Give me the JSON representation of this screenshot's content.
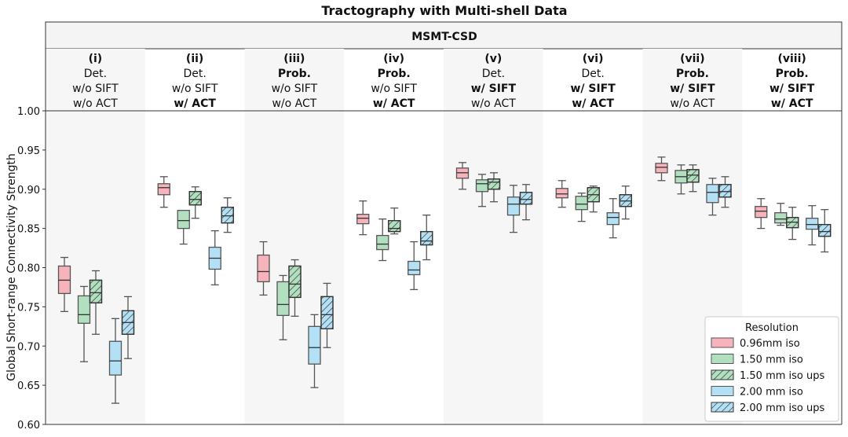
{
  "chart_data": {
    "type": "box",
    "title": "Tractography with Multi-shell Data",
    "subtitle": "MSMT-CSD",
    "ylabel": "Global Short-range Connectivity Strength",
    "ylim": [
      0.6,
      1.0
    ],
    "yticks": [
      "0.60",
      "0.65",
      "0.70",
      "0.75",
      "0.80",
      "0.85",
      "0.90",
      "0.95",
      "1.00"
    ],
    "groups": [
      {
        "lines": [
          {
            "t": "(i)",
            "b": true
          },
          {
            "t": "Det.",
            "b": false
          },
          {
            "t": "w/o SIFT",
            "b": false
          },
          {
            "t": "w/o ACT",
            "b": false
          }
        ]
      },
      {
        "lines": [
          {
            "t": "(ii)",
            "b": true
          },
          {
            "t": "Det.",
            "b": false
          },
          {
            "t": "w/o SIFT",
            "b": false
          },
          {
            "t": "w/ ACT",
            "b": true
          }
        ]
      },
      {
        "lines": [
          {
            "t": "(iii)",
            "b": true
          },
          {
            "t": "Prob.",
            "b": true
          },
          {
            "t": "w/o SIFT",
            "b": false
          },
          {
            "t": "w/o ACT",
            "b": false
          }
        ]
      },
      {
        "lines": [
          {
            "t": "(iv)",
            "b": true
          },
          {
            "t": "Prob.",
            "b": true
          },
          {
            "t": "w/o SIFT",
            "b": false
          },
          {
            "t": "w/ ACT",
            "b": true
          }
        ]
      },
      {
        "lines": [
          {
            "t": "(v)",
            "b": true
          },
          {
            "t": "Det.",
            "b": false
          },
          {
            "t": "w/ SIFT",
            "b": true
          },
          {
            "t": "w/o ACT",
            "b": false
          }
        ]
      },
      {
        "lines": [
          {
            "t": "(vi)",
            "b": true
          },
          {
            "t": "Det.",
            "b": false
          },
          {
            "t": "w/ SIFT",
            "b": true
          },
          {
            "t": "w/ ACT",
            "b": true
          }
        ]
      },
      {
        "lines": [
          {
            "t": "(vii)",
            "b": true
          },
          {
            "t": "Prob.",
            "b": true
          },
          {
            "t": "w/ SIFT",
            "b": true
          },
          {
            "t": "w/o ACT",
            "b": false
          }
        ]
      },
      {
        "lines": [
          {
            "t": "(viii)",
            "b": true
          },
          {
            "t": "Prob.",
            "b": true
          },
          {
            "t": "w/ SIFT",
            "b": true
          },
          {
            "t": "w/ ACT",
            "b": true
          }
        ]
      }
    ],
    "legend": {
      "title": "Resolution",
      "position": "bottom-right"
    },
    "series": [
      {
        "name": "0.96mm iso",
        "color": "#f6b3bb",
        "hatch": false,
        "boxes": [
          [
            0.744,
            0.767,
            0.784,
            0.802,
            0.813
          ],
          [
            0.877,
            0.893,
            0.902,
            0.907,
            0.916
          ],
          [
            0.765,
            0.782,
            0.795,
            0.816,
            0.833
          ],
          [
            0.842,
            0.856,
            0.863,
            0.868,
            0.885
          ],
          [
            0.9,
            0.914,
            0.921,
            0.927,
            0.934
          ],
          [
            0.877,
            0.889,
            0.894,
            0.901,
            0.911
          ],
          [
            0.911,
            0.921,
            0.928,
            0.933,
            0.941
          ],
          [
            0.85,
            0.864,
            0.872,
            0.878,
            0.888
          ]
        ]
      },
      {
        "name": "1.50 mm iso",
        "color": "#b2dfc0",
        "hatch": false,
        "boxes": [
          [
            0.68,
            0.729,
            0.74,
            0.764,
            0.776
          ],
          [
            0.83,
            0.85,
            0.86,
            0.873,
            0.87
          ],
          [
            0.708,
            0.739,
            0.753,
            0.782,
            0.79
          ],
          [
            0.809,
            0.823,
            0.83,
            0.841,
            0.862
          ],
          [
            0.878,
            0.897,
            0.907,
            0.912,
            0.919
          ],
          [
            0.859,
            0.874,
            0.881,
            0.891,
            0.895
          ],
          [
            0.894,
            0.908,
            0.916,
            0.924,
            0.931
          ],
          [
            0.854,
            0.857,
            0.862,
            0.87,
            0.882
          ]
        ]
      },
      {
        "name": "1.50 mm iso ups",
        "color": "#b2dfc0",
        "hatch": true,
        "boxes": [
          [
            0.715,
            0.755,
            0.768,
            0.784,
            0.796
          ],
          [
            0.863,
            0.88,
            0.887,
            0.897,
            0.903
          ],
          [
            0.738,
            0.762,
            0.779,
            0.802,
            0.81
          ],
          [
            0.843,
            0.846,
            0.85,
            0.86,
            0.876
          ],
          [
            0.884,
            0.9,
            0.909,
            0.913,
            0.921
          ],
          [
            0.871,
            0.884,
            0.893,
            0.902,
            0.904
          ],
          [
            0.897,
            0.909,
            0.918,
            0.925,
            0.931
          ],
          [
            0.836,
            0.851,
            0.858,
            0.864,
            0.877
          ]
        ]
      },
      {
        "name": "2.00 mm iso",
        "color": "#b3e0f5",
        "hatch": false,
        "boxes": [
          [
            0.627,
            0.663,
            0.681,
            0.706,
            0.735
          ],
          [
            0.778,
            0.798,
            0.812,
            0.826,
            0.847
          ],
          [
            0.647,
            0.677,
            0.698,
            0.725,
            0.74
          ],
          [
            0.772,
            0.791,
            0.797,
            0.808,
            0.833
          ],
          [
            0.845,
            0.867,
            0.881,
            0.89,
            0.905
          ],
          [
            0.838,
            0.855,
            0.864,
            0.87,
            0.888
          ],
          [
            0.867,
            0.883,
            0.896,
            0.906,
            0.914
          ],
          [
            0.829,
            0.849,
            0.855,
            0.863,
            0.879
          ]
        ]
      },
      {
        "name": "2.00 mm iso ups",
        "color": "#b3e0f5",
        "hatch": true,
        "boxes": [
          [
            0.684,
            0.715,
            0.73,
            0.745,
            0.763
          ],
          [
            0.845,
            0.857,
            0.866,
            0.877,
            0.889
          ],
          [
            0.698,
            0.722,
            0.74,
            0.763,
            0.78
          ],
          [
            0.81,
            0.829,
            0.834,
            0.846,
            0.867
          ],
          [
            0.861,
            0.881,
            0.887,
            0.896,
            0.906
          ],
          [
            0.862,
            0.878,
            0.885,
            0.893,
            0.904
          ],
          [
            0.877,
            0.89,
            0.897,
            0.906,
            0.916
          ],
          [
            0.82,
            0.84,
            0.846,
            0.855,
            0.874
          ]
        ]
      }
    ]
  }
}
